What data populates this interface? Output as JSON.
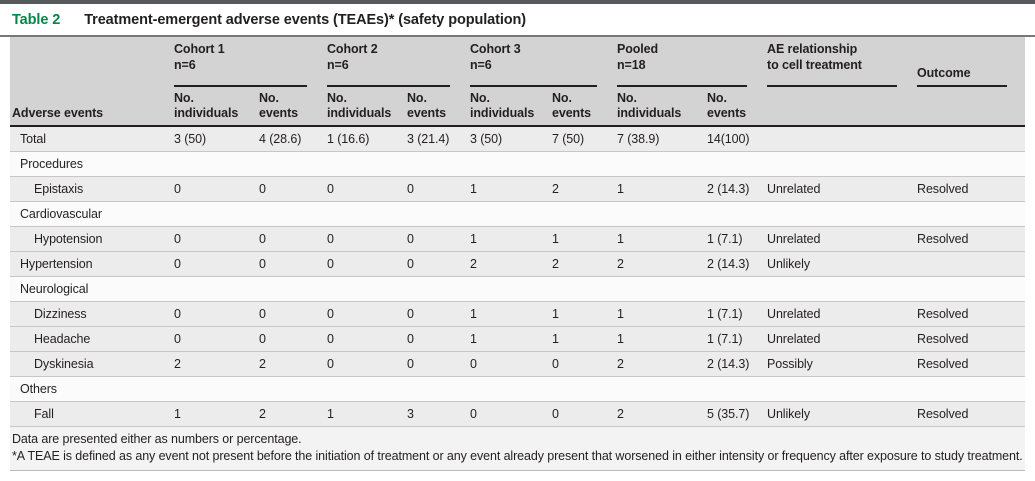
{
  "table": {
    "label": "Table 2",
    "title": "Treatment-emergent adverse events (TEAEs)* (safety population)",
    "row_header_label": "Adverse events",
    "groups": [
      "Cohort 1\nn=6",
      "Cohort 2\nn=6",
      "Cohort 3\nn=6",
      "Pooled\nn=18",
      "AE relationship\nto cell treatment",
      "Outcome"
    ],
    "sub_headers": [
      "No.\nindividuals",
      "No.\nevents",
      "No.\nindividuals",
      "No.\nevents",
      "No.\nindividuals",
      "No.\nevents",
      "No.\nindividuals",
      "No.\nevents"
    ],
    "rows": [
      {
        "type": "data",
        "indent": 0,
        "label": "Total",
        "cells": [
          "3 (50)",
          "4 (28.6)",
          "1 (16.6)",
          "3 (21.4)",
          "3 (50)",
          "7 (50)",
          "7 (38.9)",
          "14(100)",
          "",
          ""
        ]
      },
      {
        "type": "category",
        "label": "Procedures"
      },
      {
        "type": "data",
        "indent": 1,
        "label": "Epistaxis",
        "cells": [
          "0",
          "0",
          "0",
          "0",
          "1",
          "2",
          "1",
          "2 (14.3)",
          "Unrelated",
          "Resolved"
        ]
      },
      {
        "type": "category",
        "label": "Cardiovascular"
      },
      {
        "type": "data",
        "indent": 1,
        "label": "Hypotension",
        "cells": [
          "0",
          "0",
          "0",
          "0",
          "1",
          "1",
          "1",
          "1 (7.1)",
          "Unrelated",
          "Resolved"
        ]
      },
      {
        "type": "data",
        "indent": 0,
        "label": "Hypertension",
        "cells": [
          "0",
          "0",
          "0",
          "0",
          "2",
          "2",
          "2",
          "2 (14.3)",
          "Unlikely",
          ""
        ]
      },
      {
        "type": "category",
        "label": "Neurological"
      },
      {
        "type": "data",
        "indent": 1,
        "label": "Dizziness",
        "cells": [
          "0",
          "0",
          "0",
          "0",
          "1",
          "1",
          "1",
          "1 (7.1)",
          "Unrelated",
          "Resolved"
        ]
      },
      {
        "type": "data",
        "indent": 1,
        "label": "Headache",
        "cells": [
          "0",
          "0",
          "0",
          "0",
          "1",
          "1",
          "1",
          "1 (7.1)",
          "Unrelated",
          "Resolved"
        ]
      },
      {
        "type": "data",
        "indent": 1,
        "label": "Dyskinesia",
        "cells": [
          "2",
          "2",
          "0",
          "0",
          "0",
          "0",
          "2",
          "2 (14.3)",
          "Possibly",
          "Resolved"
        ]
      },
      {
        "type": "category",
        "label": "Others"
      },
      {
        "type": "data",
        "indent": 1,
        "label": "Fall",
        "cells": [
          "1",
          "2",
          "1",
          "3",
          "0",
          "0",
          "2",
          "5 (35.7)",
          "Unlikely",
          "Resolved"
        ]
      }
    ],
    "footnotes": [
      "Data are presented either as numbers or percentage.",
      "*A TEAE is defined as any event not present before the initiation of treatment or any event already present that worsened in either intensity or frequency after exposure to study treatment."
    ],
    "colors": {
      "accent_green": "#008747",
      "header_band": "#d3d3d4",
      "rule_black": "#231f20",
      "data_row_bg": "#ececed"
    }
  }
}
